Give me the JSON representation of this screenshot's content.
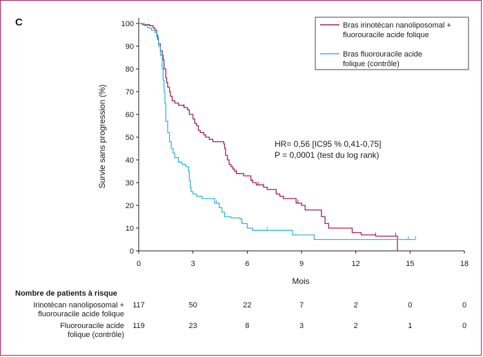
{
  "panel_label": "C",
  "colors": {
    "treatment": "#a3204e",
    "control": "#33b5d8",
    "axis": "#1a1a1a"
  },
  "chart_data": {
    "type": "line",
    "xlabel": "Mois",
    "ylabel": "Survie sans progression (%)",
    "xlim": [
      0,
      18
    ],
    "ylim": [
      0,
      100
    ],
    "xticks": [
      0,
      3,
      6,
      9,
      12,
      15,
      18
    ],
    "yticks": [
      0,
      10,
      20,
      30,
      40,
      50,
      60,
      70,
      80,
      90,
      100
    ],
    "series": [
      {
        "name_lines": [
          "Bras irinotécan nanoliposomal +",
          "fluorouracile acide folique"
        ],
        "color": "#a3204e",
        "steps": [
          [
            0,
            100
          ],
          [
            0.2,
            99.5
          ],
          [
            0.6,
            99
          ],
          [
            0.8,
            98
          ],
          [
            0.9,
            97
          ],
          [
            1.0,
            95
          ],
          [
            1.05,
            93
          ],
          [
            1.1,
            91
          ],
          [
            1.2,
            88
          ],
          [
            1.3,
            86
          ],
          [
            1.35,
            84
          ],
          [
            1.4,
            80
          ],
          [
            1.5,
            76
          ],
          [
            1.55,
            74
          ],
          [
            1.6,
            72
          ],
          [
            1.7,
            70
          ],
          [
            1.75,
            68
          ],
          [
            1.85,
            66
          ],
          [
            2.0,
            65
          ],
          [
            2.2,
            64
          ],
          [
            2.5,
            63
          ],
          [
            2.7,
            62
          ],
          [
            2.8,
            60
          ],
          [
            3.0,
            58
          ],
          [
            3.1,
            56
          ],
          [
            3.2,
            55
          ],
          [
            3.3,
            53
          ],
          [
            3.4,
            52
          ],
          [
            3.6,
            51
          ],
          [
            3.7,
            50
          ],
          [
            3.9,
            49
          ],
          [
            4.1,
            48
          ],
          [
            4.7,
            47
          ],
          [
            4.75,
            45
          ],
          [
            4.8,
            42
          ],
          [
            4.9,
            40
          ],
          [
            5.0,
            38
          ],
          [
            5.1,
            37
          ],
          [
            5.2,
            36
          ],
          [
            5.3,
            35
          ],
          [
            5.4,
            34
          ],
          [
            5.8,
            33
          ],
          [
            6.2,
            31
          ],
          [
            6.3,
            30
          ],
          [
            6.5,
            29
          ],
          [
            6.9,
            28
          ],
          [
            7.1,
            27
          ],
          [
            7.6,
            25
          ],
          [
            7.8,
            24
          ],
          [
            8.0,
            23
          ],
          [
            8.7,
            21
          ],
          [
            9.0,
            20
          ],
          [
            9.2,
            18
          ],
          [
            10.1,
            15
          ],
          [
            10.3,
            12
          ],
          [
            10.5,
            10
          ],
          [
            11.8,
            8
          ],
          [
            12.3,
            7
          ],
          [
            13.1,
            6.5
          ],
          [
            14.3,
            0
          ]
        ],
        "censor_x": [
          2.5,
          5.4,
          6.3,
          6.6,
          6.9,
          8.8,
          13.1,
          14.2
        ]
      },
      {
        "name_lines": [
          "Bras fluorouracile acide",
          "folique (contrôle)"
        ],
        "color": "#33b5d8",
        "steps": [
          [
            0,
            100
          ],
          [
            0.3,
            99
          ],
          [
            0.5,
            98
          ],
          [
            0.7,
            97
          ],
          [
            0.9,
            96
          ],
          [
            1.0,
            94
          ],
          [
            1.1,
            90
          ],
          [
            1.2,
            86
          ],
          [
            1.3,
            80
          ],
          [
            1.35,
            75
          ],
          [
            1.4,
            70
          ],
          [
            1.45,
            65
          ],
          [
            1.5,
            57
          ],
          [
            1.6,
            52
          ],
          [
            1.7,
            48
          ],
          [
            1.8,
            45
          ],
          [
            1.9,
            43
          ],
          [
            2.0,
            41
          ],
          [
            2.2,
            39
          ],
          [
            2.4,
            38
          ],
          [
            2.6,
            37
          ],
          [
            2.75,
            35
          ],
          [
            2.8,
            31
          ],
          [
            2.85,
            28
          ],
          [
            2.9,
            26
          ],
          [
            3.0,
            25
          ],
          [
            3.2,
            24
          ],
          [
            3.5,
            23
          ],
          [
            4.2,
            21
          ],
          [
            4.45,
            19
          ],
          [
            4.6,
            17
          ],
          [
            4.75,
            15
          ],
          [
            5.1,
            14.5
          ],
          [
            5.6,
            14
          ],
          [
            5.7,
            12
          ],
          [
            6.0,
            10
          ],
          [
            6.3,
            9
          ],
          [
            8.5,
            7
          ],
          [
            9.7,
            5
          ],
          [
            15.3,
            5
          ]
        ],
        "censor_x": [
          4.3,
          5.7,
          7.1,
          14.9,
          15.3
        ]
      }
    ],
    "annotation": [
      "HR= 0,56 [IC95 % 0,41-0,75]",
      "P = 0,0001 (test du log rank)"
    ],
    "at_risk": {
      "title": "Nombre de patients à risque",
      "rows": [
        {
          "label": [
            "Irinotécan nanoliposomal +",
            "fluorouracile acide folique"
          ],
          "values": [
            "117",
            "50",
            "22",
            "7",
            "2",
            "0",
            "0"
          ]
        },
        {
          "label": [
            "Fluorouracile acide",
            "folique (contrôle)"
          ],
          "values": [
            "119",
            "23",
            "8",
            "3",
            "2",
            "1",
            "0"
          ]
        }
      ]
    }
  }
}
